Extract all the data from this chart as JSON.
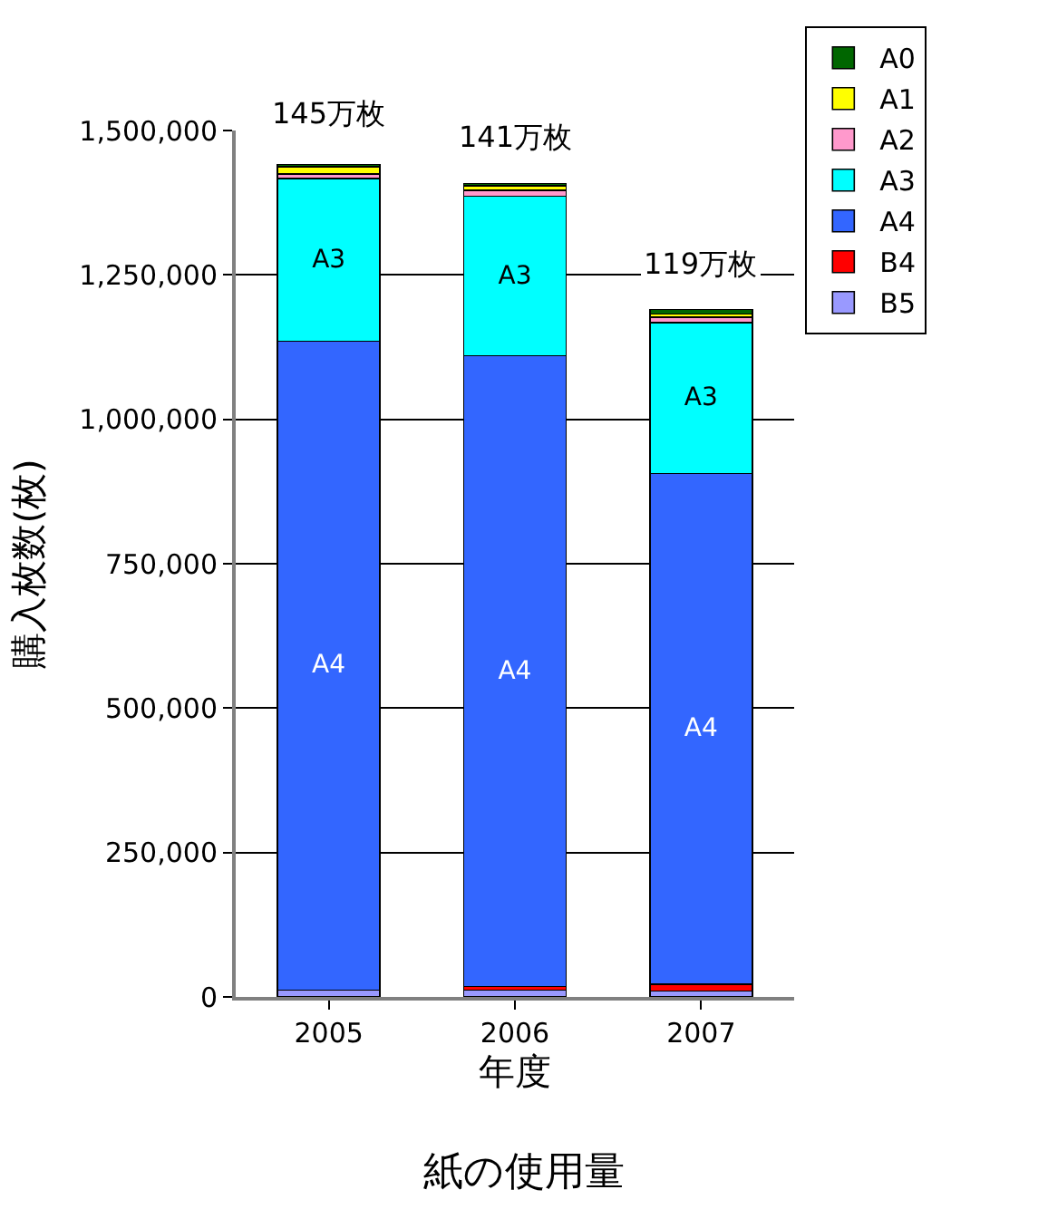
{
  "chart_data": {
    "type": "bar",
    "stacked": true,
    "title": "紙の使用量",
    "xlabel": "年度",
    "ylabel": "購入枚数(枚)",
    "categories": [
      "2005",
      "2006",
      "2007"
    ],
    "series": [
      {
        "name": "B5",
        "color": "#9999ff",
        "values": [
          12000,
          12000,
          10000
        ]
      },
      {
        "name": "B4",
        "color": "#ff0000",
        "values": [
          null,
          6000,
          12000
        ]
      },
      {
        "name": "A4",
        "color": "#3366ff",
        "values": [
          1123000,
          1092000,
          884000
        ],
        "value_labels": [
          "A4",
          "A4",
          "A4"
        ]
      },
      {
        "name": "A3",
        "color": "#00ffff",
        "values": [
          282000,
          276000,
          261000
        ],
        "value_labels": [
          "A3",
          "A3",
          "A3"
        ]
      },
      {
        "name": "A2",
        "color": "#ff99cc",
        "values": [
          8000,
          10000,
          10000
        ]
      },
      {
        "name": "A1",
        "color": "#ffff00",
        "values": [
          12000,
          8000,
          5000
        ]
      },
      {
        "name": "A0",
        "color": "#006600",
        "values": [
          4000,
          4000,
          8000
        ]
      }
    ],
    "annotations": [
      {
        "text": "145万枚",
        "x": "2005",
        "y": 1450000
      },
      {
        "text": "141万枚",
        "x": "2006",
        "y": 1410000
      },
      {
        "text": "119万枚",
        "x": "2007",
        "y": 1190000
      }
    ],
    "ylim": [
      0,
      1500000
    ],
    "yticks": [
      {
        "value": 0,
        "label": "0"
      },
      {
        "value": 250000,
        "label": "250,000"
      },
      {
        "value": 500000,
        "label": "500,000"
      },
      {
        "value": 750000,
        "label": "750,000"
      },
      {
        "value": 1000000,
        "label": "1,000,000"
      },
      {
        "value": 1250000,
        "label": "1,250,000"
      },
      {
        "value": 1500000,
        "label": "1,500,000"
      }
    ],
    "grid": "y",
    "legend": "top right"
  }
}
